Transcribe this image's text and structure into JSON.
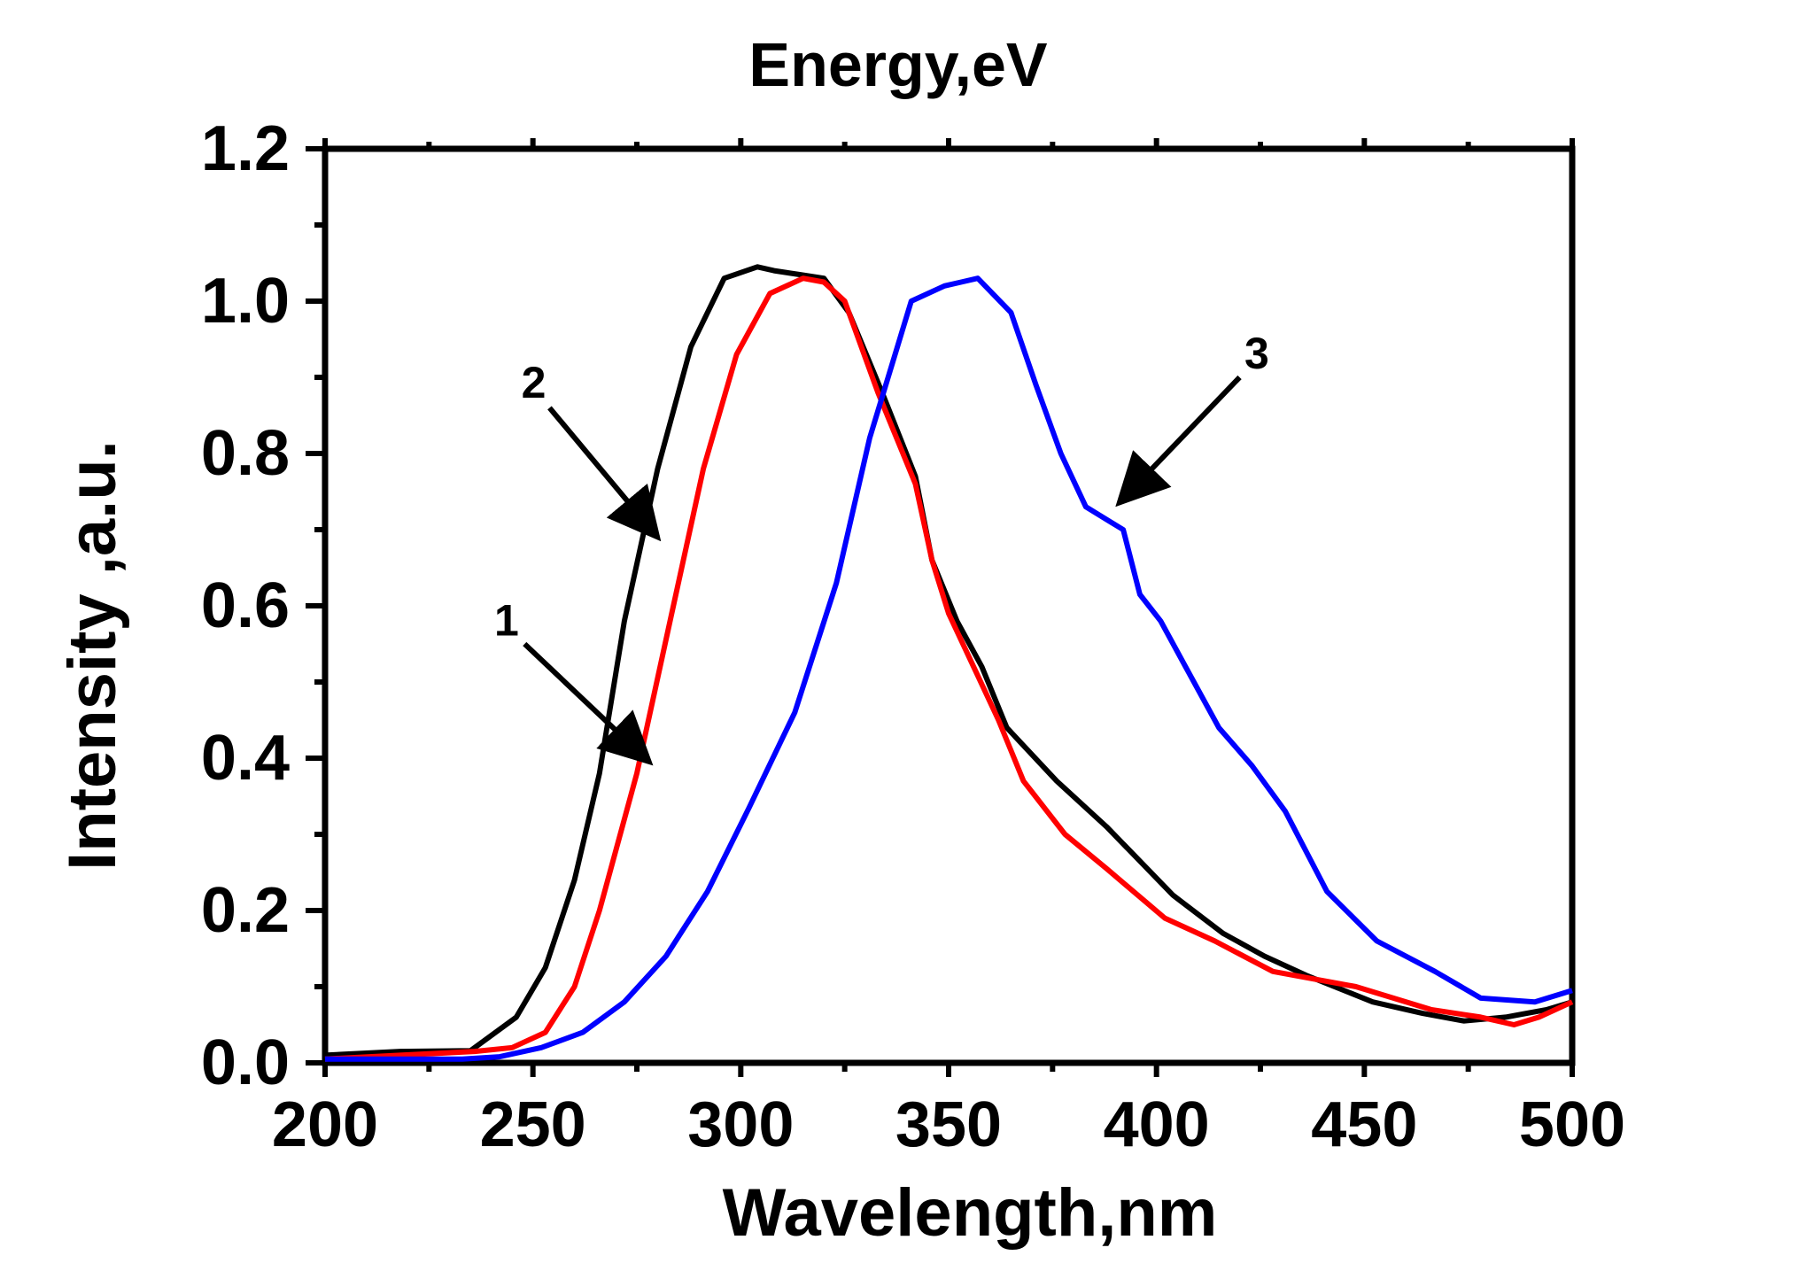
{
  "chart_data": {
    "type": "line",
    "title": "Energy,eV",
    "xlabel": "Wavelength,nm",
    "ylabel": "Intensity ,a.u.",
    "xlim": [
      200,
      500
    ],
    "ylim": [
      0,
      1.2
    ],
    "xticks": [
      200,
      250,
      300,
      350,
      400,
      450,
      500
    ],
    "xtick_labels": [
      "200",
      "250",
      "300",
      "350",
      "400",
      "450",
      "500"
    ],
    "yticks": [
      0,
      0.2,
      0.4,
      0.6,
      0.8,
      1.0,
      1.2
    ],
    "ytick_labels": [
      "0.0",
      "0.2",
      "0.4",
      "0.6",
      "0.8",
      "1.0",
      "1.2"
    ],
    "grid": false,
    "legend": "none",
    "series": [
      {
        "color": "#000000",
        "x": [
          200,
          218,
          235,
          246,
          253,
          260,
          266,
          272,
          280,
          288,
          296,
          304,
          308,
          314,
          320,
          326,
          334,
          342,
          346,
          352,
          358,
          364,
          376,
          388,
          404,
          416,
          426,
          436,
          452,
          464,
          474,
          484,
          494,
          500
        ],
        "y": [
          0.01,
          0.015,
          0.016,
          0.06,
          0.125,
          0.24,
          0.38,
          0.58,
          0.78,
          0.94,
          1.03,
          1.045,
          1.04,
          1.035,
          1.03,
          0.985,
          0.88,
          0.77,
          0.66,
          0.58,
          0.52,
          0.44,
          0.37,
          0.31,
          0.22,
          0.17,
          0.14,
          0.115,
          0.08,
          0.065,
          0.055,
          0.06,
          0.07,
          0.08
        ]
      },
      {
        "color": "#ff0000",
        "x": [
          200,
          218,
          236,
          245,
          253,
          260,
          266,
          275,
          283,
          291,
          299,
          307,
          315,
          320,
          325,
          333,
          342,
          346,
          350,
          356,
          362,
          368,
          378,
          388,
          402,
          414,
          428,
          448,
          466,
          478,
          486,
          492,
          500
        ],
        "y": [
          0.005,
          0.01,
          0.015,
          0.02,
          0.04,
          0.1,
          0.2,
          0.38,
          0.58,
          0.78,
          0.93,
          1.01,
          1.03,
          1.025,
          1.0,
          0.88,
          0.76,
          0.66,
          0.59,
          0.52,
          0.45,
          0.37,
          0.3,
          0.255,
          0.19,
          0.16,
          0.12,
          0.1,
          0.07,
          0.06,
          0.05,
          0.06,
          0.08
        ]
      },
      {
        "color": "#0000ff",
        "x": [
          200,
          218,
          233,
          242,
          252,
          262,
          272,
          282,
          292,
          302,
          313,
          323,
          331,
          341,
          349,
          353,
          357,
          365,
          371,
          377,
          383,
          389,
          392,
          396,
          401,
          407,
          415,
          423,
          431,
          441,
          453,
          467,
          478,
          491,
          500
        ],
        "y": [
          0.005,
          0.005,
          0.005,
          0.008,
          0.02,
          0.04,
          0.08,
          0.14,
          0.225,
          0.335,
          0.46,
          0.63,
          0.82,
          1.0,
          1.02,
          1.025,
          1.03,
          0.985,
          0.89,
          0.8,
          0.73,
          0.71,
          0.7,
          0.615,
          0.58,
          0.52,
          0.44,
          0.39,
          0.33,
          0.225,
          0.16,
          0.12,
          0.085,
          0.08,
          0.095
        ]
      }
    ],
    "annotations": [
      {
        "text": "1",
        "tail": [
          248,
          0.55
        ],
        "head": [
          278,
          0.395
        ]
      },
      {
        "text": "2",
        "tail": [
          254,
          0.86
        ],
        "head": [
          280,
          0.69
        ]
      },
      {
        "text": "3",
        "tail": [
          420,
          0.9
        ],
        "head": [
          391,
          0.735
        ]
      }
    ]
  }
}
